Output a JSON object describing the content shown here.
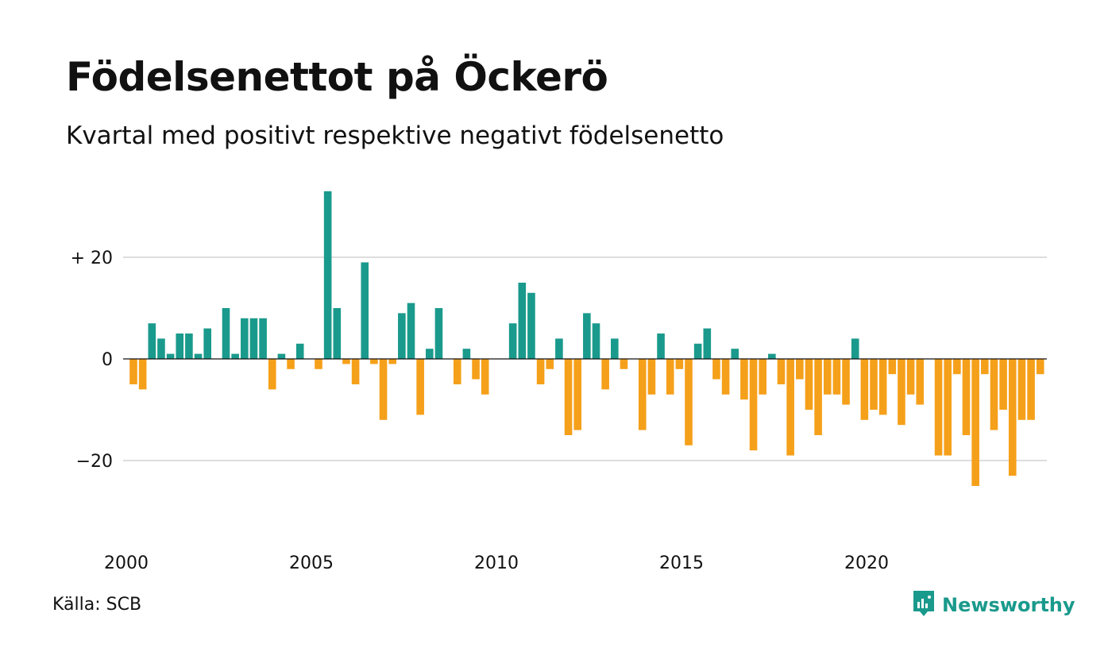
{
  "title": "Födelsenettot på Öckerö",
  "subtitle": "Kvartal med positivt respektive negativt födelsenetto",
  "source": "Källa: SCB",
  "brand": {
    "name": "Newsworthy",
    "icon": "newsworthy-logo-icon",
    "color": "#1a9a8c"
  },
  "colors": {
    "positive": "#1a9a8c",
    "negative": "#f5a01a",
    "grid": "#dddddd",
    "zero_line": "#111111"
  },
  "chart_data": {
    "type": "bar",
    "title": "Födelsenettot på Öckerö",
    "subtitle": "Kvartal med positivt respektive negativt födelsenetto",
    "x_ticks": [
      "2000",
      "2005",
      "2010",
      "2015",
      "2020"
    ],
    "y_ticks": [
      {
        "value": 20,
        "label": "+ 20"
      },
      {
        "value": 0,
        "label": "0"
      },
      {
        "value": -20,
        "label": "−20"
      }
    ],
    "ylim": [
      -33,
      34
    ],
    "grid": true,
    "start_year": 2000,
    "quarters_per_year": 4,
    "values": [
      -5,
      -6,
      7,
      4,
      1,
      5,
      5,
      1,
      6,
      0,
      10,
      1,
      8,
      8,
      8,
      -6,
      1,
      -2,
      3,
      0,
      -2,
      33,
      10,
      -1,
      -5,
      19,
      -1,
      -12,
      -1,
      9,
      11,
      -11,
      2,
      10,
      0,
      -5,
      2,
      -4,
      -7,
      0,
      0,
      7,
      15,
      13,
      -5,
      -2,
      4,
      -15,
      -14,
      9,
      7,
      -6,
      4,
      -2,
      0,
      -14,
      -7,
      5,
      -7,
      -2,
      -17,
      3,
      6,
      -4,
      -7,
      2,
      -8,
      -18,
      -7,
      1,
      -5,
      -19,
      -4,
      -10,
      -15,
      -7,
      -7,
      -9,
      4,
      -12,
      -10,
      -11,
      -3,
      -13,
      -7,
      -9,
      0,
      -19,
      -19,
      -3,
      -15,
      -25,
      -3,
      -14,
      -10,
      -23,
      -12,
      -12,
      -3
    ]
  }
}
